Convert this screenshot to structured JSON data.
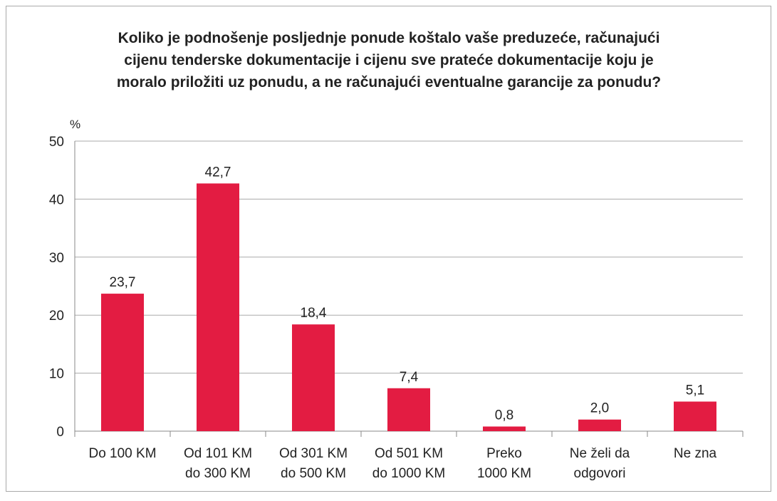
{
  "chart_data": {
    "type": "bar",
    "title": "Koliko je podnošenje posljednje ponude koštalo vaše preduzeće, računajući\ncijenu tenderske dokumentacije i cijenu sve prateće dokumentacije koju je\nmoralo priložiti uz ponudu, a ne računajući eventualne garancije za ponudu?",
    "y_axis_label": "%",
    "categories": [
      "Do 100 KM",
      "Od 101 KM\ndo 300 KM",
      "Od 301 KM\ndo 500 KM",
      "Od 501 KM\ndo 1000 KM",
      "Preko\n1000 KM",
      "Ne želi da\nodgovori",
      "Ne zna"
    ],
    "values": [
      23.7,
      42.7,
      18.4,
      7.4,
      0.8,
      2.0,
      5.1
    ],
    "value_labels": [
      "23,7",
      "42,7",
      "18,4",
      "7,4",
      "0,8",
      "2,0",
      "5,1"
    ],
    "color": "#e31c42",
    "ylim": [
      0,
      50
    ],
    "yticks": [
      0,
      10,
      20,
      30,
      40,
      50
    ],
    "grid": true
  }
}
